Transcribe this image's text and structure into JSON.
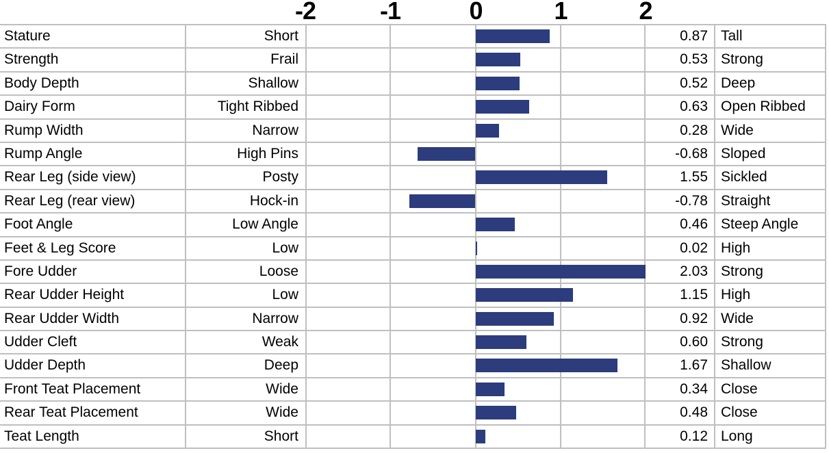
{
  "colors": {
    "bar": "#2C3C7D",
    "grid": "#BFBFBF",
    "text": "#000000",
    "background": "#FFFFFF"
  },
  "chart_data": {
    "type": "bar",
    "orientation": "horizontal",
    "axis": {
      "position": "top",
      "min": -2,
      "max": 2,
      "step": 1,
      "tick_labels": [
        "-2",
        "-1",
        "0",
        "1",
        "2"
      ]
    },
    "legend": "none",
    "grid": "on",
    "rows": [
      {
        "trait": "Stature",
        "low": "Short",
        "value": 0.87,
        "value_label": "0.87",
        "high": "Tall"
      },
      {
        "trait": "Strength",
        "low": "Frail",
        "value": 0.53,
        "value_label": "0.53",
        "high": "Strong"
      },
      {
        "trait": "Body Depth",
        "low": "Shallow",
        "value": 0.52,
        "value_label": "0.52",
        "high": "Deep"
      },
      {
        "trait": "Dairy Form",
        "low": "Tight Ribbed",
        "value": 0.63,
        "value_label": "0.63",
        "high": "Open Ribbed"
      },
      {
        "trait": "Rump Width",
        "low": "Narrow",
        "value": 0.28,
        "value_label": "0.28",
        "high": "Wide"
      },
      {
        "trait": "Rump Angle",
        "low": "High Pins",
        "value": -0.68,
        "value_label": "-0.68",
        "high": "Sloped"
      },
      {
        "trait": "Rear Leg (side view)",
        "low": "Posty",
        "value": 1.55,
        "value_label": "1.55",
        "high": "Sickled"
      },
      {
        "trait": "Rear Leg (rear view)",
        "low": "Hock-in",
        "value": -0.78,
        "value_label": "-0.78",
        "high": "Straight"
      },
      {
        "trait": "Foot Angle",
        "low": "Low Angle",
        "value": 0.46,
        "value_label": "0.46",
        "high": "Steep Angle"
      },
      {
        "trait": "Feet & Leg Score",
        "low": "Low",
        "value": 0.02,
        "value_label": "0.02",
        "high": "High"
      },
      {
        "trait": "Fore Udder",
        "low": "Loose",
        "value": 2.03,
        "value_label": "2.03",
        "high": "Strong"
      },
      {
        "trait": "Rear Udder Height",
        "low": "Low",
        "value": 1.15,
        "value_label": "1.15",
        "high": "High"
      },
      {
        "trait": "Rear Udder Width",
        "low": "Narrow",
        "value": 0.92,
        "value_label": "0.92",
        "high": "Wide"
      },
      {
        "trait": "Udder Cleft",
        "low": "Weak",
        "value": 0.6,
        "value_label": "0.60",
        "high": "Strong"
      },
      {
        "trait": "Udder Depth",
        "low": "Deep",
        "value": 1.67,
        "value_label": "1.67",
        "high": "Shallow"
      },
      {
        "trait": "Front Teat Placement",
        "low": "Wide",
        "value": 0.34,
        "value_label": "0.34",
        "high": "Close"
      },
      {
        "trait": "Rear Teat Placement",
        "low": "Wide",
        "value": 0.48,
        "value_label": "0.48",
        "high": "Close"
      },
      {
        "trait": "Teat Length",
        "low": "Short",
        "value": 0.12,
        "value_label": "0.12",
        "high": "Long"
      }
    ]
  }
}
